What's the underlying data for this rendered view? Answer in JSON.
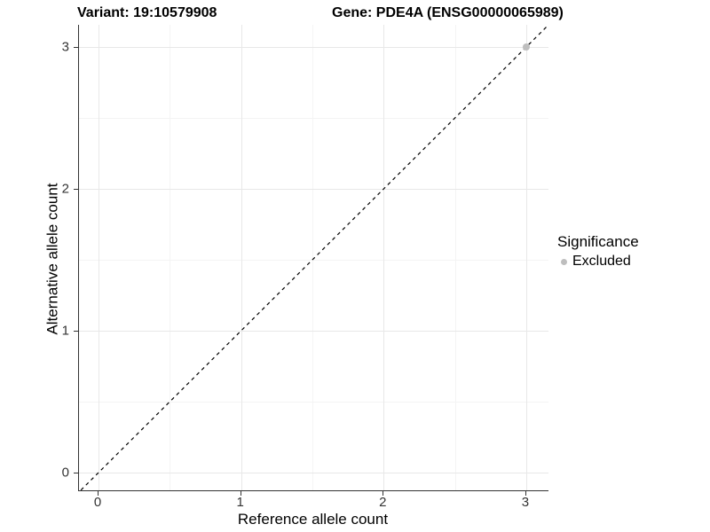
{
  "figure": {
    "title_left": "Variant: 19:10579908",
    "title_right": "Gene: PDE4A (ENSG00000065989)"
  },
  "chart_data": {
    "type": "scatter",
    "title": "Variant: 19:10579908 — Gene: PDE4A (ENSG00000065989)",
    "xlabel": "Reference allele count",
    "ylabel": "Alternative allele count",
    "xlim": [
      -0.14,
      3.16
    ],
    "ylim": [
      -0.13,
      3.16
    ],
    "x_ticks": [
      0,
      1,
      2,
      3
    ],
    "y_ticks": [
      0,
      1,
      2,
      3
    ],
    "x_minor_gridlines": [
      0.5,
      1.5,
      2.5
    ],
    "y_minor_gridlines": [
      0.5,
      1.5,
      2.5
    ],
    "grid": true,
    "series": [
      {
        "name": "Excluded",
        "color": "#bebebe",
        "points": [
          {
            "x": 3,
            "y": 3
          }
        ]
      }
    ],
    "reference_line": {
      "kind": "identity",
      "slope": 1,
      "intercept": 0,
      "style": "dashed",
      "color": "#000000"
    },
    "legend": {
      "title": "Significance",
      "position": "right",
      "entries": [
        {
          "label": "Excluded",
          "color": "#bebebe"
        }
      ]
    }
  },
  "colors": {
    "background": "#ffffff",
    "major_grid": "#e8e8e8",
    "minor_grid": "#f4f4f4",
    "axis_line": "#333333",
    "tick_text": "#333333",
    "point": "#bebebe"
  }
}
